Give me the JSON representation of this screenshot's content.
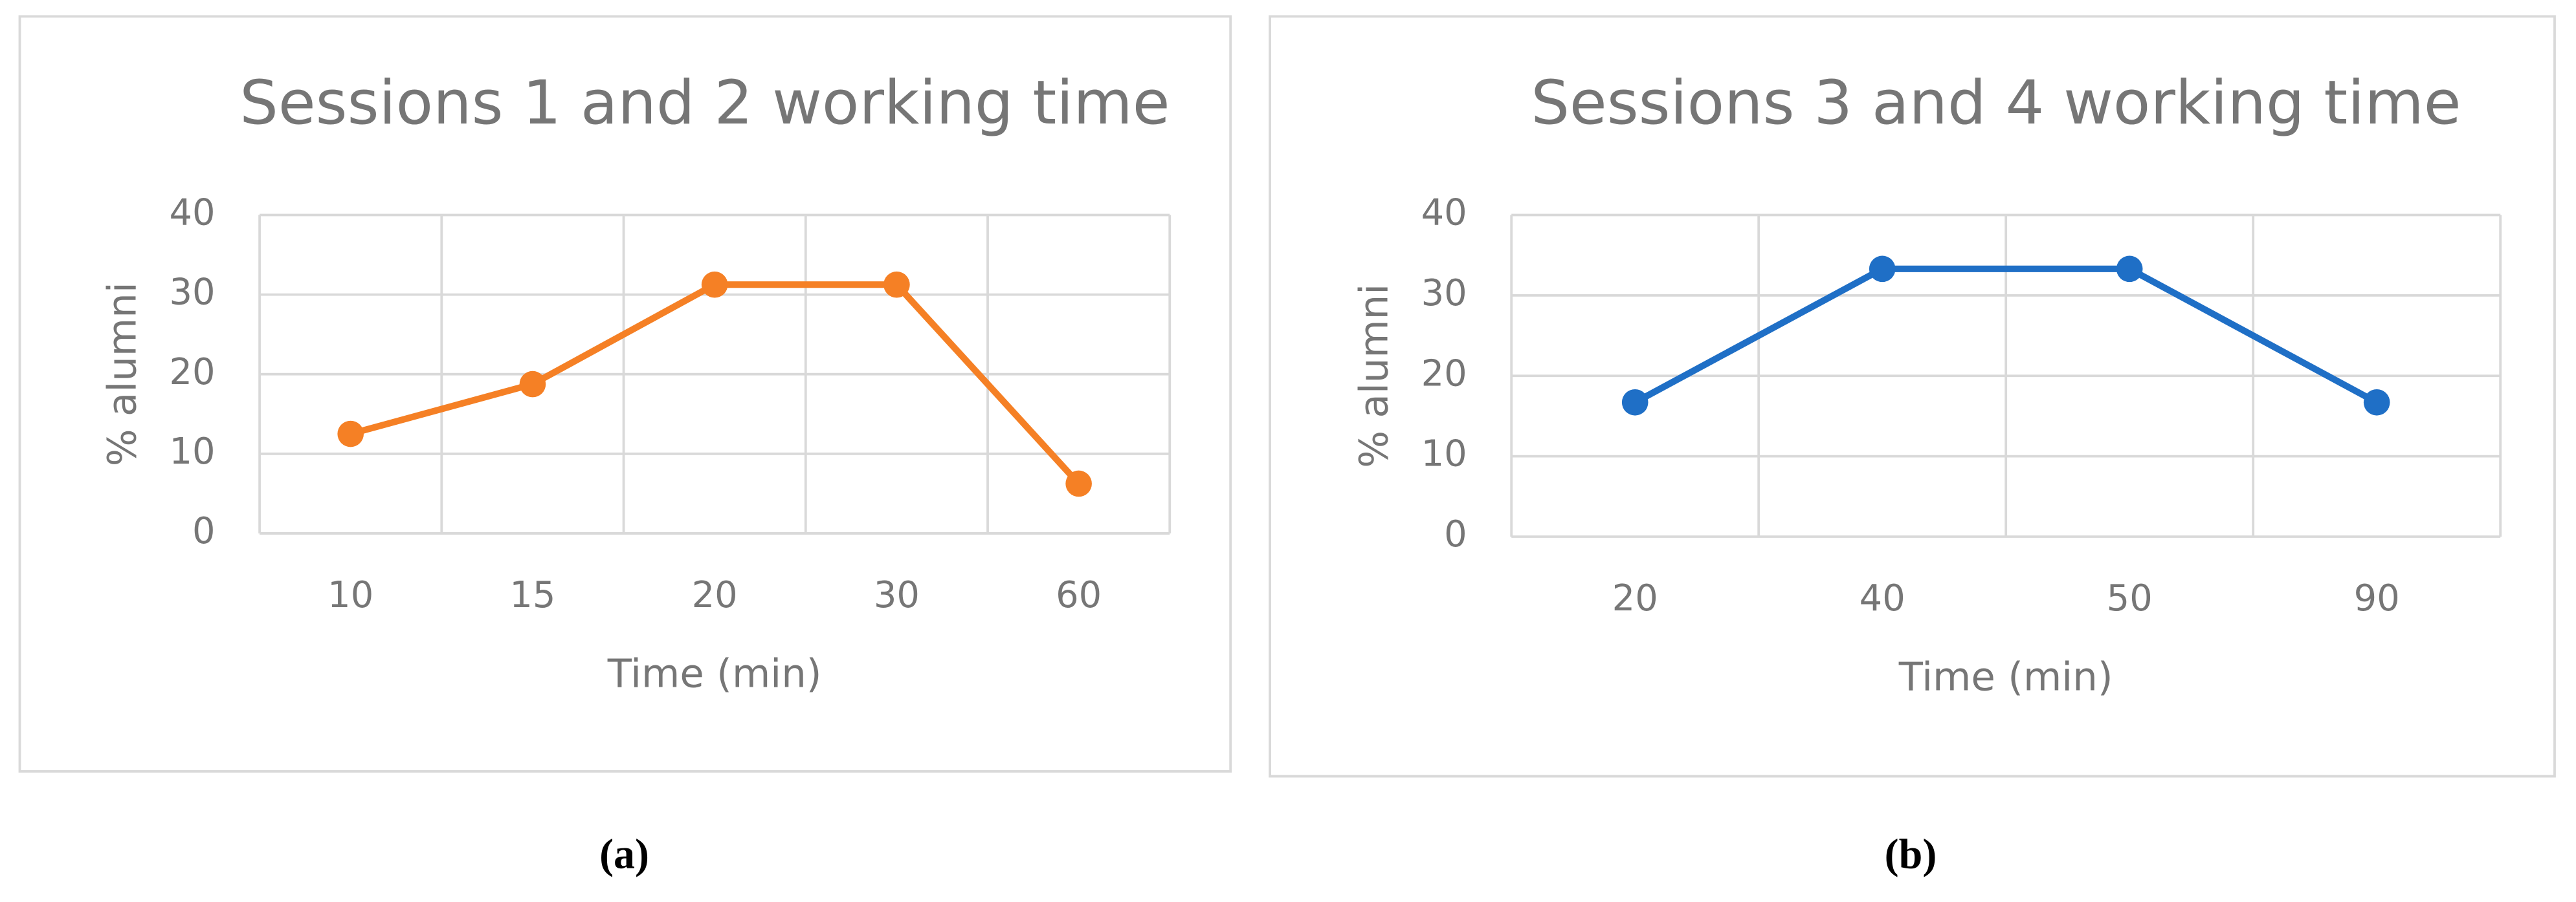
{
  "chart_data": [
    {
      "type": "line",
      "title": "Sessions 1 and 2 working time",
      "x_label": "Time (min)",
      "y_label": "% alumni",
      "categories": [
        "10",
        "15",
        "20",
        "30",
        "60"
      ],
      "series": [
        {
          "color": "#f58025",
          "values": [
            12.5,
            18.75,
            31.25,
            31.25,
            6.25
          ]
        }
      ],
      "ylim": [
        0,
        40
      ],
      "yticks": [
        0,
        10,
        20,
        30,
        40
      ],
      "grid": true,
      "caption": "(a)"
    },
    {
      "type": "line",
      "title": "Sessions 3 and 4 working time",
      "x_label": "Time (min)",
      "y_label": "% alumni",
      "categories": [
        "20",
        "40",
        "50",
        "90"
      ],
      "series": [
        {
          "color": "#1f6fc6",
          "values": [
            16.7,
            33.3,
            33.3,
            16.7
          ]
        }
      ],
      "ylim": [
        0,
        40
      ],
      "yticks": [
        0,
        10,
        20,
        30,
        40
      ],
      "grid": true,
      "caption": "(b)"
    }
  ]
}
